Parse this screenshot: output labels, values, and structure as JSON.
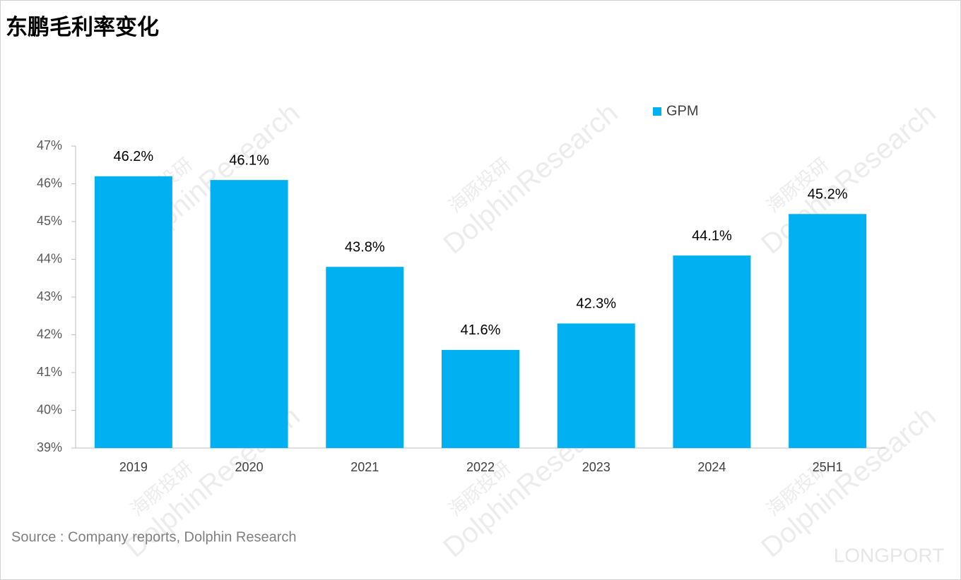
{
  "chart_data": {
    "type": "bar",
    "title": "东鹏毛利率变化",
    "categories": [
      "2019",
      "2020",
      "2021",
      "2022",
      "2023",
      "2024",
      "25H1"
    ],
    "series": [
      {
        "name": "GPM",
        "color": "#00b0f0",
        "values": [
          46.2,
          46.1,
          43.8,
          41.6,
          42.3,
          44.1,
          45.2
        ],
        "value_labels": [
          "46.2%",
          "46.1%",
          "43.8%",
          "41.6%",
          "42.3%",
          "44.1%",
          "45.2%"
        ]
      }
    ],
    "ylim": [
      39,
      47
    ],
    "yticks": [
      {
        "value": 39,
        "label": "39%"
      },
      {
        "value": 40,
        "label": "40%"
      },
      {
        "value": 41,
        "label": "41%"
      },
      {
        "value": 42,
        "label": "42%"
      },
      {
        "value": 43,
        "label": "43%"
      },
      {
        "value": 44,
        "label": "44%"
      },
      {
        "value": 45,
        "label": "45%"
      },
      {
        "value": 46,
        "label": "46%"
      },
      {
        "value": 47,
        "label": "47%"
      }
    ],
    "grid": false,
    "legend": "top-right",
    "source": "Source : Company reports, Dolphin Research",
    "watermark": [
      "海豚投研",
      "DolphinResearch",
      "LONGPORT"
    ]
  }
}
